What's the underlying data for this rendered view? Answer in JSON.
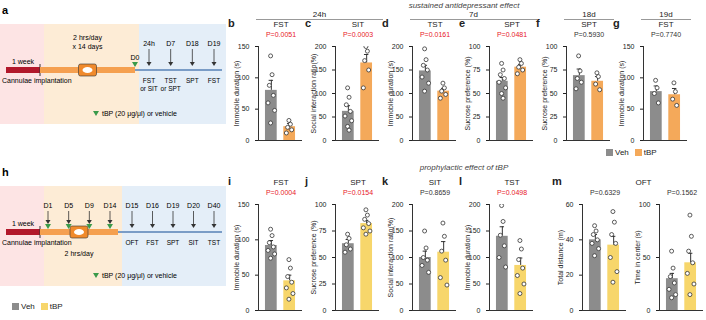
{
  "sections": [
    {
      "header": "sustained antidepressant effect",
      "panels": [
        "b",
        "c",
        "d",
        "e",
        "f",
        "g"
      ],
      "time_labels": [
        {
          "text": "24h",
          "panels": [
            "b",
            "c"
          ]
        },
        {
          "text": "7d",
          "panels": [
            "d",
            "e"
          ]
        },
        {
          "text": "18d",
          "panels": [
            "f"
          ]
        },
        {
          "text": "19d",
          "panels": [
            "g"
          ]
        }
      ],
      "legend": [
        {
          "name": "Veh",
          "color": "#8c8c8c"
        },
        {
          "name": "tBP",
          "color": "#f4a95a"
        }
      ],
      "diagram": {
        "panel": "a",
        "pre": "1 week",
        "implant": "Cannulae implantation",
        "schedule": [
          "2 hrs/day",
          "x 14 days"
        ],
        "start": "D0",
        "events": [
          {
            "day": "24h",
            "tests": [
              "FST",
              "or SIT"
            ]
          },
          {
            "day": "D7",
            "tests": [
              "TST",
              "or SPT"
            ]
          },
          {
            "day": "D18",
            "tests": [
              "SPT"
            ]
          },
          {
            "day": "D19",
            "tests": [
              "FST"
            ]
          }
        ],
        "injection": "tBP (20 μg/μl) or vehicle"
      }
    },
    {
      "header": "prophylactic effect of tBP",
      "panels": [
        "i",
        "j",
        "k",
        "l",
        "m"
      ],
      "time_labels": [],
      "legend": [
        {
          "name": "Veh",
          "color": "#8c8c8c"
        },
        {
          "name": "tBP",
          "color": "#f7d66b"
        }
      ],
      "diagram": {
        "panel": "h",
        "pre": "1 week",
        "implant": "Cannulae implantation",
        "schedule": [
          "2 hrs/day"
        ],
        "treatment_days": [
          "D1",
          "D5",
          "D9",
          "D14"
        ],
        "events": [
          {
            "day": "D15",
            "tests": [
              "OFT"
            ]
          },
          {
            "day": "D16",
            "tests": [
              "FST"
            ]
          },
          {
            "day": "D19",
            "tests": [
              "SPT"
            ]
          },
          {
            "day": "D20",
            "tests": [
              "SIT"
            ]
          },
          {
            "day": "D40",
            "tests": [
              "TST"
            ]
          }
        ],
        "injection": "tBP (20 μg/μl) or vehicle"
      }
    }
  ],
  "chart_data": [
    {
      "panel": "b",
      "type": "bar",
      "title": "FST",
      "ylabel": "Immobile duration (s)",
      "annotation": {
        "text": "P=0.0051",
        "color": "#e8202a"
      },
      "categories": [
        "Veh",
        "tBP"
      ],
      "values": [
        80,
        22
      ],
      "error": [
        16,
        5
      ],
      "points": [
        [
          135,
          105,
          88,
          72,
          60,
          48,
          28
        ],
        [
          32,
          26,
          21,
          17,
          12
        ]
      ],
      "colors": [
        "#8c8c8c",
        "#f4a95a"
      ],
      "ylim": [
        0,
        150
      ],
      "yticks": [
        0,
        50,
        100,
        150
      ]
    },
    {
      "panel": "c",
      "type": "bar",
      "title": "SIT",
      "ylabel": "Social interaction ratio(%)",
      "annotation": {
        "text": "P=0.0003",
        "color": "#e8202a"
      },
      "categories": [
        "Veh",
        "tBP"
      ],
      "values": [
        62,
        165
      ],
      "error": [
        12,
        18
      ],
      "points": [
        [
          112,
          92,
          76,
          62,
          52,
          42,
          30,
          22
        ],
        [
          200,
          190,
          170,
          150,
          112
        ]
      ],
      "colors": [
        "#8c8c8c",
        "#f4a95a"
      ],
      "ylim": [
        0,
        200
      ],
      "yticks": [
        0,
        50,
        100,
        150,
        200
      ]
    },
    {
      "panel": "d",
      "type": "bar",
      "title": "TST",
      "ylabel": "Immobile duration (s)",
      "annotation": {
        "text": "P=0.0161",
        "color": "#e8202a"
      },
      "categories": [
        "Veh",
        "tBP"
      ],
      "values": [
        148,
        105
      ],
      "error": [
        12,
        6
      ],
      "points": [
        [
          195,
          172,
          160,
          150,
          135,
          122,
          105
        ],
        [
          122,
          112,
          105,
          98,
          90
        ]
      ],
      "colors": [
        "#8c8c8c",
        "#f4a95a"
      ],
      "ylim": [
        0,
        200
      ],
      "yticks": [
        0,
        50,
        100,
        150,
        200
      ]
    },
    {
      "panel": "e",
      "type": "bar",
      "title": "SPT",
      "ylabel": "Sucrose preference (%)",
      "annotation": {
        "text": "P=0.0481",
        "color": "#e8202a"
      },
      "categories": [
        "Veh",
        "tBP"
      ],
      "values": [
        63,
        78
      ],
      "error": [
        4,
        3
      ],
      "points": [
        [
          82,
          75,
          70,
          66,
          62,
          56,
          50,
          45
        ],
        [
          86,
          82,
          78,
          75,
          71
        ]
      ],
      "colors": [
        "#8c8c8c",
        "#f4a95a"
      ],
      "ylim": [
        0,
        100
      ],
      "yticks": [
        0,
        25,
        50,
        75,
        100
      ]
    },
    {
      "panel": "f",
      "type": "bar",
      "title": "SPT",
      "ylabel": "Sucrose preference (%)",
      "annotation": {
        "text": "P=0.5930",
        "color": "#333333"
      },
      "categories": [
        "Veh",
        "tBP"
      ],
      "values": [
        69,
        63
      ],
      "error": [
        7,
        5
      ],
      "points": [
        [
          90,
          74,
          66,
          62,
          55
        ],
        [
          72,
          68,
          60,
          54
        ]
      ],
      "colors": [
        "#8c8c8c",
        "#f4a95a"
      ],
      "ylim": [
        0,
        100
      ],
      "yticks": [
        0,
        25,
        50,
        75,
        100
      ]
    },
    {
      "panel": "g",
      "type": "bar",
      "title": "FST",
      "ylabel": "Immobile duration (s)",
      "annotation": {
        "text": "P=0.7740",
        "color": "#333333"
      },
      "categories": [
        "Veh",
        "tBP"
      ],
      "values": [
        78,
        73
      ],
      "error": [
        9,
        10
      ],
      "points": [
        [
          96,
          84,
          75,
          60
        ],
        [
          92,
          78,
          66,
          56
        ]
      ],
      "colors": [
        "#8c8c8c",
        "#f4a95a"
      ],
      "ylim": [
        0,
        150
      ],
      "yticks": [
        0,
        50,
        100,
        150
      ]
    },
    {
      "panel": "i",
      "type": "bar",
      "title": "FST",
      "ylabel": "Immobile duration (s)",
      "annotation": {
        "text": "P=0.0004",
        "color": "#e8202a"
      },
      "categories": [
        "Veh",
        "tBP"
      ],
      "values": [
        92,
        42
      ],
      "error": [
        7,
        8
      ],
      "points": [
        [
          115,
          106,
          96,
          90,
          85,
          80,
          74
        ],
        [
          72,
          60,
          48,
          40,
          32,
          24,
          16
        ]
      ],
      "colors": [
        "#8c8c8c",
        "#f7d66b"
      ],
      "ylim": [
        0,
        150
      ],
      "yticks": [
        0,
        50,
        100,
        150
      ]
    },
    {
      "panel": "j",
      "type": "bar",
      "title": "SPT",
      "ylabel": "Sucrose preference (%)",
      "annotation": {
        "text": "P=0.0154",
        "color": "#e8202a"
      },
      "categories": [
        "Veh",
        "tBP"
      ],
      "values": [
        63,
        82
      ],
      "error": [
        4,
        3
      ],
      "points": [
        [
          72,
          68,
          62,
          58,
          55
        ],
        [
          95,
          90,
          86,
          82,
          78,
          75,
          72
        ]
      ],
      "colors": [
        "#8c8c8c",
        "#f7d66b"
      ],
      "ylim": [
        0,
        100
      ],
      "yticks": [
        0,
        25,
        50,
        75,
        100
      ]
    },
    {
      "panel": "k",
      "type": "bar",
      "title": "SIT",
      "ylabel": "Social interaction ratio(%)",
      "annotation": {
        "text": "P=0.8659",
        "color": "#333333"
      },
      "categories": [
        "Veh",
        "tBP"
      ],
      "values": [
        100,
        110
      ],
      "error": [
        12,
        20
      ],
      "points": [
        [
          150,
          118,
          100,
          95,
          85,
          72
        ],
        [
          165,
          140,
          112,
          95,
          62,
          48
        ]
      ],
      "colors": [
        "#8c8c8c",
        "#f7d66b"
      ],
      "ylim": [
        0,
        200
      ],
      "yticks": [
        0,
        50,
        100,
        150,
        200
      ]
    },
    {
      "panel": "l",
      "type": "bar",
      "title": "TST",
      "ylabel": "Immobile duration (s)",
      "annotation": {
        "text": "P=0.0498",
        "color": "#e8202a"
      },
      "categories": [
        "Veh",
        "tBP"
      ],
      "values": [
        140,
        85
      ],
      "error": [
        18,
        14
      ],
      "points": [
        [
          198,
          168,
          142,
          122,
          100,
          82
        ],
        [
          132,
          116,
          96,
          80,
          66,
          50,
          32
        ]
      ],
      "colors": [
        "#8c8c8c",
        "#f7d66b"
      ],
      "ylim": [
        0,
        200
      ],
      "yticks": [
        0,
        50,
        100,
        150,
        200
      ]
    },
    {
      "panel": "m",
      "type": "bar",
      "title": "OFT",
      "ylabel": "Total distance (m)",
      "annotation": {
        "text": "P=0.6329",
        "color": "#333333"
      },
      "categories": [
        "Veh",
        "tBP"
      ],
      "values": [
        40,
        37
      ],
      "error": [
        3,
        5
      ],
      "points": [
        [
          48,
          45,
          43,
          40,
          38,
          35,
          31
        ],
        [
          56,
          50,
          43,
          38,
          30,
          22,
          16
        ]
      ],
      "colors": [
        "#8c8c8c",
        "#f7d66b"
      ],
      "ylim": [
        0,
        60
      ],
      "yticks": [
        0,
        20,
        40,
        60
      ]
    },
    {
      "type": "bar",
      "ylabel": "Time in center (s)",
      "annotation": {
        "text": "P=0.1562",
        "color": "#333333"
      },
      "categories": [
        "Veh",
        "tBP"
      ],
      "values": [
        30,
        45
      ],
      "error": [
        5,
        9
      ],
      "points": [
        [
          56,
          40,
          32,
          26,
          20,
          15,
          12
        ],
        [
          90,
          70,
          56,
          45,
          35,
          25,
          15
        ]
      ],
      "colors": [
        "#8c8c8c",
        "#f7d66b"
      ],
      "ylim": [
        0,
        100
      ],
      "yticks": [
        0,
        50,
        100
      ]
    }
  ]
}
